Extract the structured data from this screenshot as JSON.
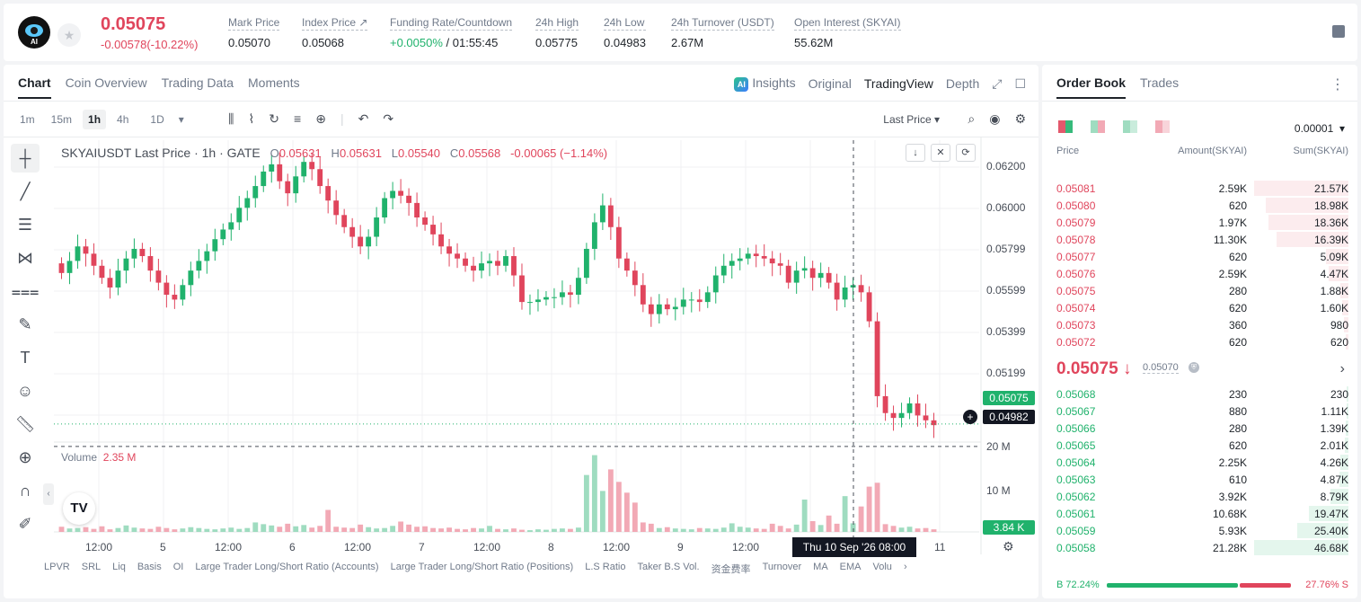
{
  "ticker": {
    "logo_text": "AI",
    "last_price": "0.05075",
    "change": "-0.00578(-10.22%)",
    "stats": [
      {
        "label": "Mark Price",
        "value": "0.05070"
      },
      {
        "label": "Index Price ↗",
        "value": "0.05068"
      },
      {
        "label": "Funding Rate/Countdown",
        "value_green": "+0.0050%",
        "value_rest": " / 01:55:45"
      },
      {
        "label": "24h High",
        "value": "0.05775"
      },
      {
        "label": "24h Low",
        "value": "0.04983"
      },
      {
        "label": "24h Turnover (USDT)",
        "value": "2.67M"
      },
      {
        "label": "Open Interest (SKYAI)",
        "value": "55.62M"
      }
    ]
  },
  "chart_tabs": [
    "Chart",
    "Coin Overview",
    "Trading Data",
    "Moments"
  ],
  "view_tabs": {
    "insights": "Insights",
    "original": "Original",
    "tradingview": "TradingView",
    "depth": "Depth"
  },
  "intervals": [
    "1m",
    "15m",
    "1h",
    "4h",
    "1D"
  ],
  "price_source": "Last Price",
  "legend": {
    "symbol": "SKYAIUSDT Last Price · 1h · GATE",
    "o": "0.05631",
    "h": "0.05631",
    "l": "0.05540",
    "c": "0.05568",
    "chg": "-0.00065 (−1.14%)"
  },
  "volume_legend": {
    "label": "Volume",
    "value": "2.35 M"
  },
  "price_axis": [
    "0.06200",
    "0.06000",
    "0.05799",
    "0.05599",
    "0.05399",
    "0.05199"
  ],
  "volume_axis": [
    "20 M",
    "10 M"
  ],
  "price_tags": {
    "last": "0.05075",
    "crosshair": "0.04982",
    "volume": "3.84 K"
  },
  "time_axis": [
    "12:00",
    "5",
    "12:00",
    "6",
    "12:00",
    "7",
    "12:00",
    "8",
    "12:00",
    "9",
    "12:00",
    "11"
  ],
  "crosshair_date": "Thu 10 Sep '26   08:00",
  "indicators": [
    "LPVR",
    "SRL",
    "Liq",
    "Basis",
    "OI",
    "Large Trader Long/Short Ratio (Accounts)",
    "Large Trader Long/Short Ratio (Positions)",
    "L.S Ratio",
    "Taker B.S Vol.",
    "资金费率",
    "Turnover",
    "MA",
    "EMA",
    "Volu"
  ],
  "colors": {
    "up": "#20b26c",
    "down": "#e0455c",
    "up_vol": "#9fdcc0",
    "down_vol": "#f2a9b5"
  },
  "chart_data": {
    "type": "candlestick",
    "ohlc_series": [
      0.057,
      0.0575,
      0.0581,
      0.0578,
      0.0573,
      0.0568,
      0.0564,
      0.0571,
      0.0576,
      0.058,
      0.0577,
      0.0571,
      0.0566,
      0.0561,
      0.0559,
      0.0565,
      0.0571,
      0.0575,
      0.0579,
      0.0584,
      0.0588,
      0.0591,
      0.0597,
      0.0601,
      0.0606,
      0.0612,
      0.0615,
      0.0608,
      0.0603,
      0.061,
      0.0616,
      0.0613,
      0.0606,
      0.06,
      0.0594,
      0.0589,
      0.0585,
      0.0581,
      0.0585,
      0.0593,
      0.0601,
      0.0604,
      0.0602,
      0.0599,
      0.0593,
      0.059,
      0.0586,
      0.0581,
      0.0578,
      0.0576,
      0.0573,
      0.0571,
      0.0574,
      0.0575,
      0.0573,
      0.0577,
      0.0569,
      0.0558,
      0.0558,
      0.0559,
      0.056,
      0.056,
      0.0562,
      0.0561,
      0.0568,
      0.058,
      0.0591,
      0.0598,
      0.0589,
      0.0576,
      0.0571,
      0.0565,
      0.0557,
      0.0553,
      0.0557,
      0.0555,
      0.0556,
      0.0559,
      0.0559,
      0.0558,
      0.0562,
      0.0569,
      0.0573,
      0.0575,
      0.0576,
      0.0578,
      0.0577,
      0.0576,
      0.0574,
      0.0573,
      0.0566,
      0.0571,
      0.0572,
      0.0568,
      0.057,
      0.0566,
      0.0559,
      0.0564,
      0.0565,
      0.0562,
      0.055,
      0.0519,
      0.0512,
      0.051,
      0.0512,
      0.0516,
      0.0511,
      0.0509,
      0.0507
    ],
    "volume_series": [
      1.2,
      0.8,
      0.9,
      1.1,
      0.7,
      1.3,
      0.6,
      0.9,
      1.5,
      1.0,
      0.8,
      0.7,
      1.2,
      0.9,
      0.6,
      0.8,
      1.1,
      0.9,
      0.7,
      0.6,
      0.8,
      1.0,
      0.7,
      0.9,
      2.2,
      1.8,
      1.5,
      1.2,
      1.9,
      1.3,
      1.6,
      1.0,
      1.4,
      5.1,
      1.2,
      1.0,
      0.9,
      1.7,
      1.1,
      0.8,
      0.9,
      1.4,
      2.4,
      1.7,
      1.2,
      1.3,
      0.9,
      0.8,
      1.0,
      0.7,
      0.6,
      0.9,
      0.8,
      1.4,
      0.7,
      0.6,
      0.8,
      0.5,
      0.4,
      0.6,
      0.5,
      0.7,
      0.8,
      0.7,
      1.0,
      13.2,
      17.8,
      9.5,
      14.5,
      11.6,
      9.1,
      6.8,
      2.2,
      1.9,
      0.9,
      1.1,
      0.8,
      0.7,
      0.6,
      0.9,
      0.8,
      0.7,
      1.0,
      2.0,
      1.2,
      1.0,
      0.8,
      0.7,
      1.9,
      1.4,
      0.8,
      1.7,
      7.5,
      2.5,
      1.6,
      3.8,
      1.9,
      8.3,
      2.0,
      5.9,
      10.5,
      11.4,
      1.8,
      1.4,
      1.0,
      1.2,
      0.8,
      0.9,
      0.6
    ],
    "ylim": [
      0.05,
      0.0625
    ],
    "grid": true
  },
  "orderbook": {
    "tabs": [
      "Order Book",
      "Trades"
    ],
    "precision": "0.00001",
    "headers": {
      "price": "Price",
      "amount": "Amount(SKYAI)",
      "sum": "Sum(SKYAI)"
    },
    "asks": [
      {
        "price": "0.05081",
        "amount": "2.59K",
        "sum": "21.57K",
        "depth": 1.0
      },
      {
        "price": "0.05080",
        "amount": "620",
        "sum": "18.98K",
        "depth": 0.88
      },
      {
        "price": "0.05079",
        "amount": "1.97K",
        "sum": "18.36K",
        "depth": 0.85
      },
      {
        "price": "0.05078",
        "amount": "11.30K",
        "sum": "16.39K",
        "depth": 0.76
      },
      {
        "price": "0.05077",
        "amount": "620",
        "sum": "5.09K",
        "depth": 0.24
      },
      {
        "price": "0.05076",
        "amount": "2.59K",
        "sum": "4.47K",
        "depth": 0.21
      },
      {
        "price": "0.05075",
        "amount": "280",
        "sum": "1.88K",
        "depth": 0.09
      },
      {
        "price": "0.05074",
        "amount": "620",
        "sum": "1.60K",
        "depth": 0.07
      },
      {
        "price": "0.05073",
        "amount": "360",
        "sum": "980",
        "depth": 0.05
      },
      {
        "price": "0.05072",
        "amount": "620",
        "sum": "620",
        "depth": 0.03
      }
    ],
    "mid_price": "0.05075 ↓",
    "mark_price": "0.05070",
    "bids": [
      {
        "price": "0.05068",
        "amount": "230",
        "sum": "230",
        "depth": 0.005
      },
      {
        "price": "0.05067",
        "amount": "880",
        "sum": "1.11K",
        "depth": 0.02
      },
      {
        "price": "0.05066",
        "amount": "280",
        "sum": "1.39K",
        "depth": 0.03
      },
      {
        "price": "0.05065",
        "amount": "620",
        "sum": "2.01K",
        "depth": 0.04
      },
      {
        "price": "0.05064",
        "amount": "2.25K",
        "sum": "4.26K",
        "depth": 0.09
      },
      {
        "price": "0.05063",
        "amount": "610",
        "sum": "4.87K",
        "depth": 0.1
      },
      {
        "price": "0.05062",
        "amount": "3.92K",
        "sum": "8.79K",
        "depth": 0.19
      },
      {
        "price": "0.05061",
        "amount": "10.68K",
        "sum": "19.47K",
        "depth": 0.42
      },
      {
        "price": "0.05059",
        "amount": "5.93K",
        "sum": "25.40K",
        "depth": 0.54
      },
      {
        "price": "0.05058",
        "amount": "21.28K",
        "sum": "46.68K",
        "depth": 1.0
      }
    ],
    "buy_ratio_label": "B 72.24%",
    "sell_ratio_label": "27.76% S",
    "buy_ratio": 72.24
  }
}
